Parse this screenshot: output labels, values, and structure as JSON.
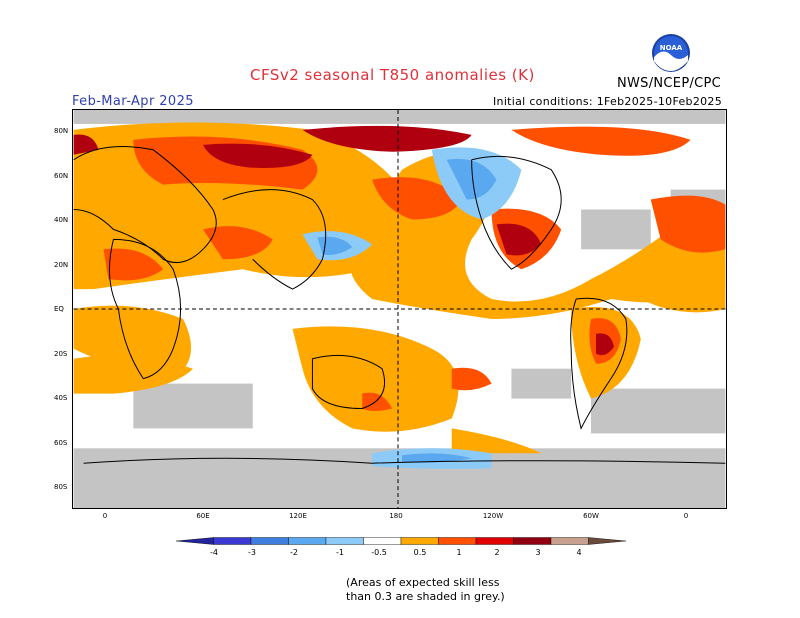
{
  "title": "CFSv2 seasonal T850 anomalies (K)",
  "period": "Feb-Mar-Apr 2025",
  "agency": "NWS/NCEP/CPC",
  "initial_conditions": "Initial conditions: 1Feb2025-10Feb2025",
  "logo_text": "NOAA",
  "latitude_labels": [
    "80N",
    "60N",
    "40N",
    "20N",
    "EQ",
    "20S",
    "40S",
    "60S",
    "80S"
  ],
  "longitude_labels": [
    "0",
    "60E",
    "120E",
    "180",
    "120W",
    "60W",
    "0"
  ],
  "colorbar": {
    "labels": [
      "-4",
      "-3",
      "-2",
      "-1",
      "-0.5",
      "0.5",
      "1",
      "2",
      "3",
      "4"
    ],
    "colors": [
      "#24249c",
      "#3a3ad2",
      "#3f7fe0",
      "#5aa8f0",
      "#8ccbf8",
      "#ffffff",
      "#ffa800",
      "#ff5000",
      "#e00000",
      "#900010",
      "#c8a090",
      "#6a4a3a"
    ]
  },
  "skill_note": {
    "line1": "(Areas of expected skill less",
    "line2": "than 0.3 are shaded in grey.)"
  }
}
